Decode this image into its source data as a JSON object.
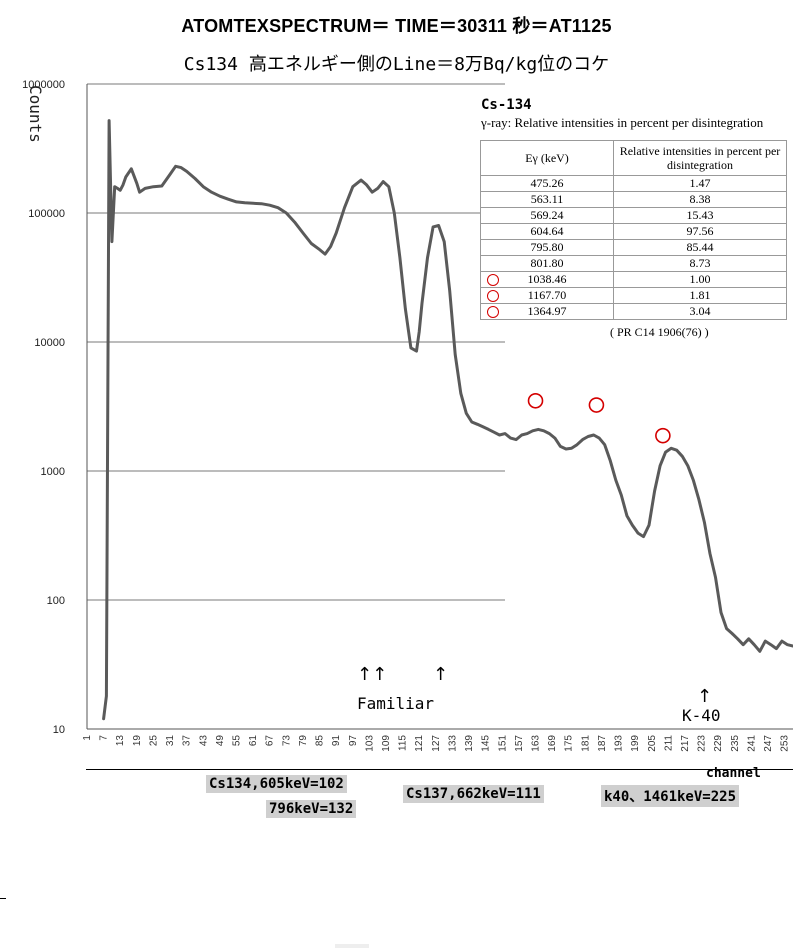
{
  "title_line1": "ATOMTEXSPECTRUM＝ TIME＝30311 秒＝AT1125",
  "title_line2": "Cs134 高エネルギー側のLine＝8万Bq/kg位のコケ",
  "chart_data": {
    "type": "line",
    "ylabel": "Counts",
    "xlabel": "channel",
    "y_scale": "log",
    "ylim": [
      10,
      1000000
    ],
    "xlim": [
      1,
      256
    ],
    "grid": "horizontal",
    "y_ticks": [
      "10",
      "100",
      "1000",
      "10000",
      "100000",
      "1000000"
    ],
    "x_ticks": [
      1,
      7,
      13,
      19,
      25,
      31,
      37,
      43,
      49,
      55,
      61,
      67,
      73,
      79,
      85,
      91,
      97,
      103,
      109,
      115,
      121,
      127,
      133,
      139,
      145,
      151,
      157,
      163,
      169,
      175,
      181,
      187,
      193,
      199,
      205,
      211,
      217,
      223,
      229,
      235,
      241,
      247,
      253
    ],
    "series": [
      {
        "x": [
          7,
          8,
          9,
          10,
          11,
          12,
          13,
          14,
          15,
          17,
          19,
          20,
          22,
          25,
          28,
          31,
          33,
          35,
          37,
          40,
          43,
          46,
          49,
          52,
          55,
          58,
          61,
          64,
          67,
          70,
          73,
          76,
          79,
          82,
          85,
          87,
          89,
          91,
          94,
          97,
          100,
          102,
          104,
          106,
          108,
          110,
          112,
          114,
          116,
          118,
          120,
          121,
          122,
          124,
          126,
          128,
          130,
          132,
          134,
          136,
          138,
          140,
          142,
          144,
          146,
          148,
          150,
          152,
          154,
          156,
          158,
          160,
          162,
          164,
          166,
          168,
          170,
          172,
          174,
          176,
          178,
          180,
          182,
          184,
          186,
          188,
          190,
          192,
          194,
          196,
          198,
          200,
          202,
          204,
          206,
          208,
          210,
          212,
          214,
          216,
          218,
          220,
          222,
          224,
          226,
          228,
          230,
          232,
          234,
          236,
          238,
          240,
          242,
          244,
          246,
          248,
          250,
          252,
          254,
          256
        ],
        "y": [
          12,
          18,
          520000,
          60000,
          160000,
          155000,
          150000,
          165000,
          190000,
          220000,
          170000,
          145000,
          155000,
          160000,
          162000,
          200000,
          230000,
          225000,
          210000,
          185000,
          160000,
          145000,
          135000,
          128000,
          122000,
          120000,
          119000,
          118000,
          115000,
          110000,
          100000,
          85000,
          70000,
          58000,
          52000,
          48000,
          55000,
          70000,
          110000,
          160000,
          180000,
          165000,
          145000,
          155000,
          175000,
          160000,
          100000,
          45000,
          18000,
          9000,
          8500,
          12000,
          20000,
          45000,
          78000,
          80000,
          60000,
          25000,
          8000,
          4000,
          2800,
          2400,
          2300,
          2200,
          2100,
          2000,
          1900,
          1950,
          1800,
          1750,
          1900,
          1950,
          2050,
          2100,
          2050,
          1950,
          1800,
          1550,
          1480,
          1500,
          1600,
          1750,
          1850,
          1900,
          1800,
          1600,
          1200,
          850,
          650,
          450,
          380,
          330,
          310,
          380,
          700,
          1100,
          1400,
          1500,
          1450,
          1300,
          1100,
          850,
          600,
          400,
          230,
          150,
          80,
          60,
          55,
          50,
          45,
          50,
          45,
          40,
          48,
          45,
          42,
          48,
          45,
          44
        ]
      }
    ],
    "peak_markers_channel": [
      163,
      185,
      209
    ]
  },
  "reference": {
    "isotope": "Cs-134",
    "gamma_caption": "γ-ray: Relative intensities in percent per disintegration",
    "headers": [
      "Eγ (keV)",
      "Relative intensities in percent per disintegration"
    ],
    "rows": [
      {
        "energy": "475.26",
        "intensity": "1.47",
        "marked": false
      },
      {
        "energy": "563.11",
        "intensity": "8.38",
        "marked": false
      },
      {
        "energy": "569.24",
        "intensity": "15.43",
        "marked": false
      },
      {
        "energy": "604.64",
        "intensity": "97.56",
        "marked": false
      },
      {
        "energy": "795.80",
        "intensity": "85.44",
        "marked": false
      },
      {
        "energy": "801.80",
        "intensity": "8.73",
        "marked": false
      },
      {
        "energy": "1038.46",
        "intensity": "1.00",
        "marked": true
      },
      {
        "energy": "1167.70",
        "intensity": "1.81",
        "marked": true
      },
      {
        "energy": "1364.97",
        "intensity": "3.04",
        "marked": true
      }
    ],
    "source": "( PR C14 1906(76) )"
  },
  "annotations": {
    "familiar_arrows": "↑↑",
    "familiar_arrow_single": "↑",
    "familiar_label": "Familiar",
    "k40_arrow": "↑",
    "k40_label": "K-40"
  },
  "calibration": {
    "cs134_line1": "Cs134,605keV=102",
    "cs134_line2": "796keV=132",
    "cs137": "Cs137,662keV=111",
    "k40": "k40、1461keV=225"
  },
  "colors": {
    "line": "#5a5a5a",
    "grid": "#7a7a7a",
    "peak_marker": "#d40000",
    "calibration_bg": "#cfcfcf"
  }
}
